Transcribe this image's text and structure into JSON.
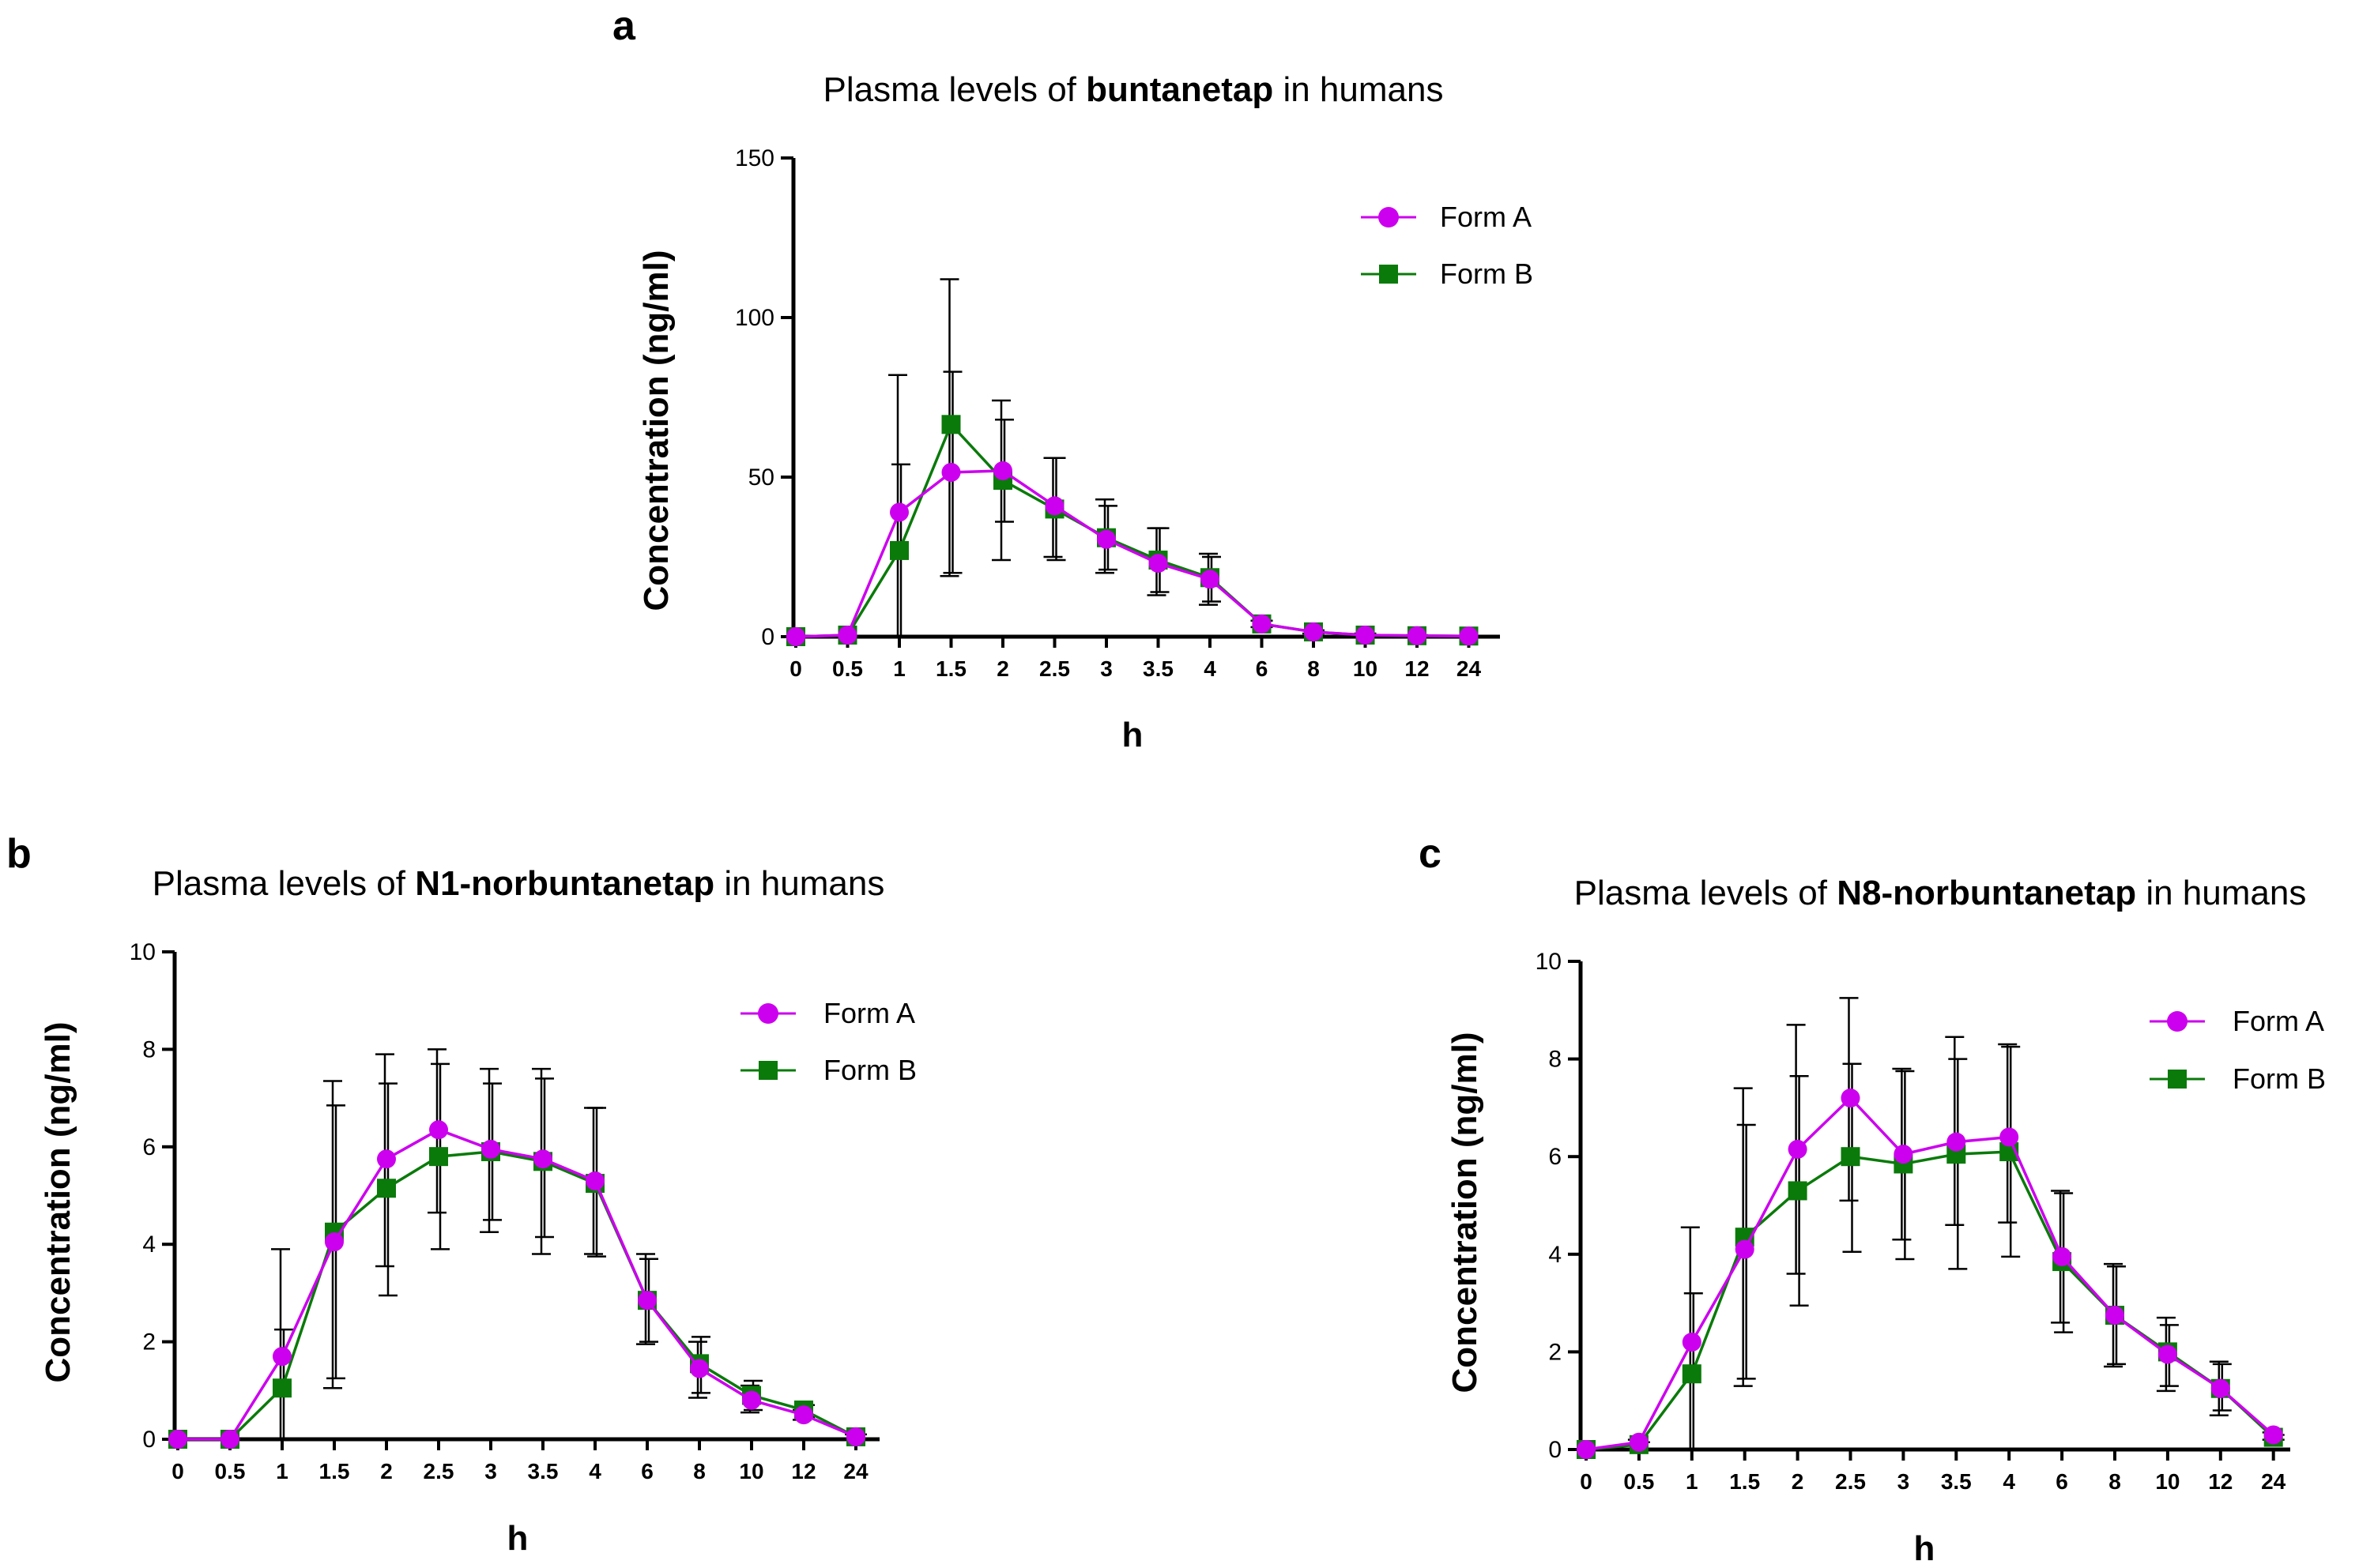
{
  "chart_data": [
    {
      "panel": "a",
      "type": "line",
      "title_prefix": "Plasma levels of ",
      "title_bold": "buntanetap",
      "title_suffix": " in humans",
      "xlabel": "h",
      "ylabel": "Concentration (ng/ml)",
      "ylim": [
        0,
        150
      ],
      "yticks": [
        "0",
        "50",
        "100",
        "150"
      ],
      "categories": [
        "0",
        "0.5",
        "1",
        "1.5",
        "2",
        "2.5",
        "3",
        "3.5",
        "4",
        "6",
        "8",
        "10",
        "12",
        "24"
      ],
      "legend": "top-right",
      "series": [
        {
          "name": "Form A",
          "marker": "circle",
          "color": "#cc00ee",
          "values": [
            0,
            0.5,
            39,
            51.5,
            52,
            41,
            30.5,
            23,
            18,
            4,
            1.5,
            0.5,
            0.3,
            0.2
          ],
          "err_upper": [
            0,
            0,
            82,
            112,
            74,
            56,
            43,
            34,
            26,
            5,
            2,
            1,
            0.5,
            0.3
          ],
          "err_lower": [
            0,
            0,
            0,
            19,
            24,
            25,
            20,
            13,
            10,
            3,
            1,
            0,
            0,
            0
          ]
        },
        {
          "name": "Form B",
          "marker": "square",
          "color": "#0a7a0a",
          "values": [
            0,
            0.5,
            27,
            66.5,
            49,
            40,
            31,
            24,
            18.5,
            4,
            1.5,
            0.5,
            0.3,
            0.2
          ],
          "err_upper": [
            0,
            0,
            54,
            83,
            68,
            56,
            41,
            34,
            25,
            5,
            2,
            1,
            0.5,
            0.3
          ],
          "err_lower": [
            0,
            0,
            0,
            20,
            36,
            24,
            21,
            14,
            11,
            3,
            1,
            0,
            0,
            0
          ]
        }
      ]
    },
    {
      "panel": "b",
      "type": "line",
      "title_prefix": "Plasma levels of ",
      "title_bold": "N1-norbuntanetap",
      "title_suffix": " in humans",
      "xlabel": "h",
      "ylabel": "Concentration (ng/ml)",
      "ylim": [
        0,
        10
      ],
      "yticks": [
        "0",
        "2",
        "4",
        "6",
        "8",
        "10"
      ],
      "categories": [
        "0",
        "0.5",
        "1",
        "1.5",
        "2",
        "2.5",
        "3",
        "3.5",
        "4",
        "6",
        "8",
        "10",
        "12",
        "24"
      ],
      "legend": "top-right",
      "series": [
        {
          "name": "Form A",
          "marker": "circle",
          "color": "#cc00ee",
          "values": [
            0,
            0,
            1.7,
            4.05,
            5.75,
            6.35,
            5.95,
            5.75,
            5.3,
            2.85,
            1.45,
            0.8,
            0.5,
            0.05
          ],
          "err_upper": [
            0,
            0,
            3.9,
            7.35,
            7.9,
            8.0,
            7.6,
            7.6,
            6.8,
            3.8,
            2.0,
            1.1,
            0.6,
            0.1
          ],
          "err_lower": [
            0,
            0,
            0,
            1.05,
            3.55,
            4.65,
            4.25,
            3.8,
            3.8,
            1.95,
            0.85,
            0.55,
            0.4,
            0
          ]
        },
        {
          "name": "Form B",
          "marker": "square",
          "color": "#0a7a0a",
          "values": [
            0,
            0,
            1.05,
            4.25,
            5.15,
            5.8,
            5.9,
            5.7,
            5.25,
            2.85,
            1.55,
            0.9,
            0.6,
            0.05
          ],
          "err_upper": [
            0,
            0,
            2.25,
            6.85,
            7.3,
            7.7,
            7.3,
            7.4,
            6.8,
            3.7,
            2.1,
            1.2,
            0.7,
            0.1
          ],
          "err_lower": [
            0,
            0,
            0,
            1.25,
            2.95,
            3.9,
            4.5,
            4.15,
            3.75,
            2.0,
            0.95,
            0.6,
            0.45,
            0
          ]
        }
      ]
    },
    {
      "panel": "c",
      "type": "line",
      "title_prefix": "Plasma levels of ",
      "title_bold": "N8-norbuntanetap",
      "title_suffix": " in humans",
      "xlabel": "h",
      "ylabel": "Concentration (ng/ml)",
      "ylim": [
        0,
        10
      ],
      "yticks": [
        "0",
        "2",
        "4",
        "6",
        "8",
        "10"
      ],
      "categories": [
        "0",
        "0.5",
        "1",
        "1.5",
        "2",
        "2.5",
        "3",
        "3.5",
        "4",
        "6",
        "8",
        "10",
        "12",
        "24"
      ],
      "legend": "top-right",
      "series": [
        {
          "name": "Form A",
          "marker": "circle",
          "color": "#cc00ee",
          "values": [
            0,
            0.15,
            2.2,
            4.1,
            6.15,
            7.2,
            6.05,
            6.3,
            6.4,
            3.95,
            2.75,
            1.95,
            1.25,
            0.3
          ],
          "err_upper": [
            0,
            0.2,
            4.55,
            7.4,
            8.7,
            9.25,
            7.8,
            8.45,
            8.3,
            5.3,
            3.8,
            2.7,
            1.8,
            0.35
          ],
          "err_lower": [
            0,
            0,
            0,
            1.3,
            3.6,
            5.1,
            4.3,
            4.6,
            4.65,
            2.6,
            1.7,
            1.2,
            0.7,
            0.2
          ]
        },
        {
          "name": "Form B",
          "marker": "square",
          "color": "#0a7a0a",
          "values": [
            0,
            0.1,
            1.55,
            4.35,
            5.3,
            6.0,
            5.85,
            6.05,
            6.1,
            3.85,
            2.75,
            2.0,
            1.25,
            0.25
          ],
          "err_upper": [
            0,
            0.15,
            3.2,
            6.65,
            7.65,
            7.9,
            7.75,
            8.0,
            8.25,
            5.25,
            3.75,
            2.55,
            1.75,
            0.3
          ],
          "err_lower": [
            0,
            0,
            0,
            1.45,
            2.95,
            4.05,
            3.9,
            3.7,
            3.95,
            2.4,
            1.75,
            1.3,
            0.8,
            0.2
          ]
        }
      ]
    }
  ]
}
